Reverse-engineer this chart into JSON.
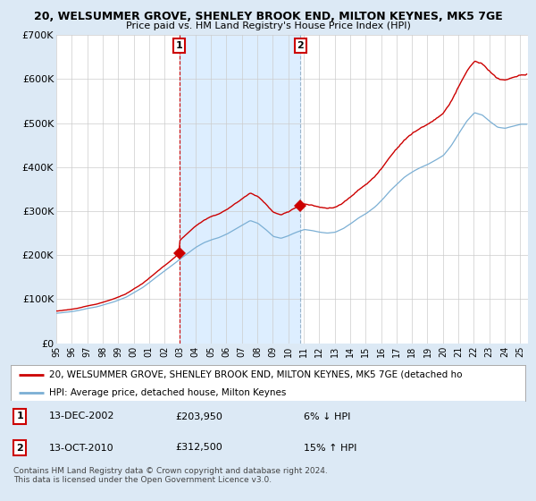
{
  "title": "20, WELSUMMER GROVE, SHENLEY BROOK END, MILTON KEYNES, MK5 7GE",
  "subtitle": "Price paid vs. HM Land Registry's House Price Index (HPI)",
  "legend_line1": "20, WELSUMMER GROVE, SHENLEY BROOK END, MILTON KEYNES, MK5 7GE (detached ho",
  "legend_line2": "HPI: Average price, detached house, Milton Keynes",
  "annotation1_date": "13-DEC-2002",
  "annotation1_price": "£203,950",
  "annotation1_hpi": "6% ↓ HPI",
  "annotation2_date": "13-OCT-2010",
  "annotation2_price": "£312,500",
  "annotation2_hpi": "15% ↑ HPI",
  "copyright": "Contains HM Land Registry data © Crown copyright and database right 2024.\nThis data is licensed under the Open Government Licence v3.0.",
  "red_color": "#cc0000",
  "blue_color": "#7bafd4",
  "vline1_color": "#cc0000",
  "vline2_color": "#9ab5cc",
  "shade_color": "#ddeeff",
  "background_color": "#dce9f5",
  "plot_bg_color": "#ffffff",
  "grid_color": "#cccccc",
  "annotation_box_color": "#cc0000",
  "ylim": [
    0,
    700000
  ],
  "yticks": [
    0,
    100000,
    200000,
    300000,
    400000,
    500000,
    600000,
    700000
  ],
  "ytick_labels": [
    "£0",
    "£100K",
    "£200K",
    "£300K",
    "£400K",
    "£500K",
    "£600K",
    "£700K"
  ],
  "sale1_x": 2002.958,
  "sale1_y": 203950,
  "sale2_x": 2010.792,
  "sale2_y": 312500,
  "xlim_start": 1995.0,
  "xlim_end": 2025.5
}
